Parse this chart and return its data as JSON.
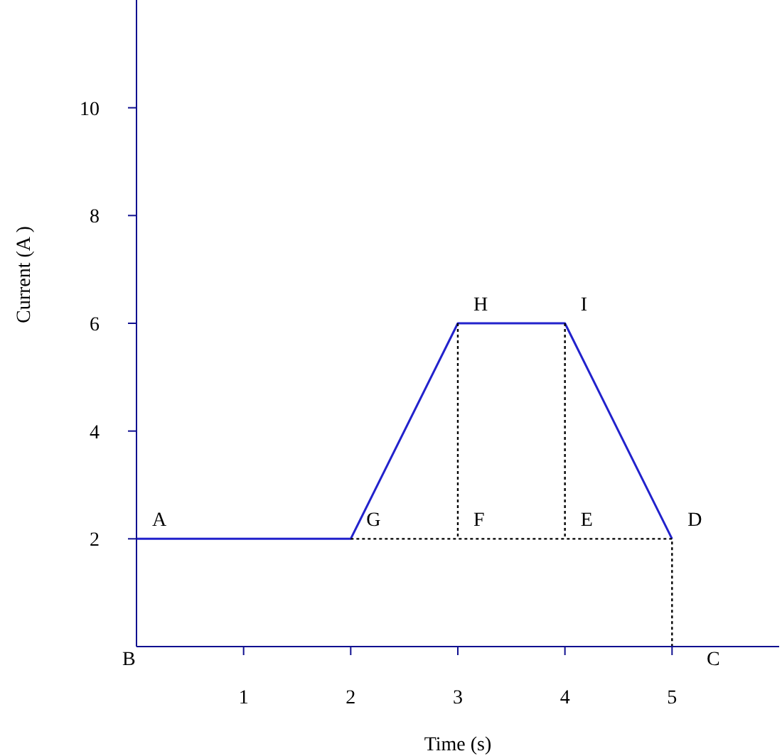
{
  "chart_data": {
    "type": "line",
    "xlabel": "Time (s)",
    "ylabel": "Current (A )",
    "xlim": [
      0,
      6
    ],
    "ylim": [
      0,
      12
    ],
    "xticks": [
      1,
      2,
      3,
      4,
      5
    ],
    "yticks": [
      2,
      4,
      6,
      8,
      10
    ],
    "grid": false,
    "marker": "none",
    "series": [
      {
        "color": "#2222cc",
        "x": [
          0,
          2,
          3,
          4,
          5
        ],
        "values": [
          2,
          2,
          6,
          6,
          2
        ],
        "line_style": "solid"
      },
      {
        "color": "#000000",
        "x": [
          3,
          3,
          null,
          4,
          4,
          null,
          2,
          5,
          5
        ],
        "values": [
          6,
          2,
          null,
          6,
          2,
          null,
          2,
          2,
          0
        ],
        "line_style": "dotted"
      }
    ],
    "annotations": [
      {
        "text": "A",
        "x": 0,
        "y": 2
      },
      "B",
      "C",
      {
        "text": "D",
        "x": 5,
        "y": 2
      },
      {
        "text": "E",
        "x": 4,
        "y": 2
      },
      {
        "text": "F",
        "x": 3,
        "y": 2
      },
      {
        "text": "G",
        "x": 2,
        "y": 2
      },
      {
        "text": "H",
        "x": 3,
        "y": 6
      },
      {
        "text": "I",
        "x": 4,
        "y": 6
      }
    ]
  }
}
